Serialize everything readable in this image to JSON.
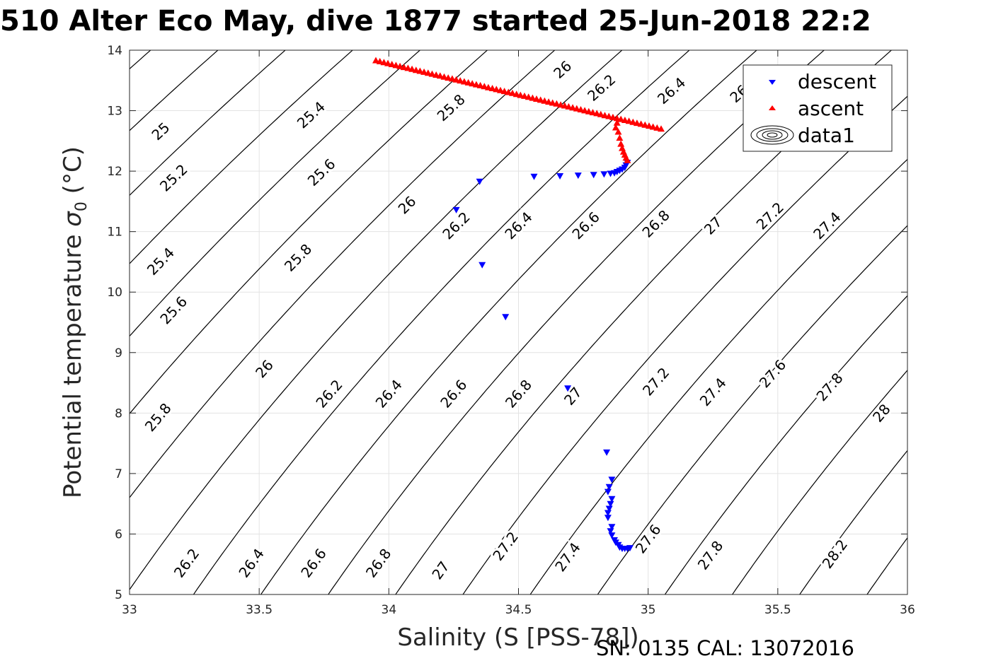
{
  "title": "510 Alter Eco May, dive 1877 started 25-Jun-2018 22:2",
  "footer_note": "SN: 0135  CAL: 13072016",
  "colors": {
    "descent": "#0000ff",
    "ascent": "#ff0000",
    "contour": "#000000",
    "grid": "#e3e3e3"
  },
  "chart_data": {
    "type": "scatter",
    "title": "510 Alter Eco May, dive 1877 started 25-Jun-2018 22:2",
    "xlabel": "Salinity (S [PSS-78])",
    "ylabel": {
      "main": "Potential temperature ",
      "sym": "σ",
      "sub": "0",
      "unit": " (°C)"
    },
    "xlim": [
      33,
      36
    ],
    "ylim": [
      5,
      14
    ],
    "x_ticks": [
      "33",
      "33.5",
      "34",
      "34.5",
      "35",
      "35.5",
      "36"
    ],
    "y_ticks": [
      "5",
      "6",
      "7",
      "8",
      "9",
      "10",
      "11",
      "12",
      "13",
      "14"
    ],
    "grid": true,
    "legend_position": "top-right",
    "legend": [
      {
        "label": "descent",
        "marker": "triangle-down",
        "color": "#0000ff"
      },
      {
        "label": "ascent",
        "marker": "triangle-up",
        "color": "#ff0000"
      },
      {
        "label": "data1",
        "marker": "contour",
        "color": "#000000"
      }
    ],
    "series": [
      {
        "name": "descent",
        "marker": "triangle-down",
        "color": "#0000ff",
        "points": [
          [
            34.35,
            11.83
          ],
          [
            34.26,
            11.36
          ],
          [
            34.36,
            10.45
          ],
          [
            34.45,
            9.59
          ],
          [
            34.56,
            11.91
          ],
          [
            34.66,
            11.92
          ],
          [
            34.73,
            11.93
          ],
          [
            34.79,
            11.94
          ],
          [
            34.83,
            11.95
          ],
          [
            34.855,
            11.96
          ],
          [
            34.87,
            11.97
          ],
          [
            34.88,
            11.99
          ],
          [
            34.89,
            12.01
          ],
          [
            34.9,
            12.03
          ],
          [
            34.91,
            12.06
          ],
          [
            34.915,
            12.1
          ],
          [
            34.92,
            12.14
          ],
          [
            34.69,
            8.41
          ],
          [
            34.84,
            7.35
          ],
          [
            34.86,
            6.9
          ],
          [
            34.85,
            6.78
          ],
          [
            34.845,
            6.7
          ],
          [
            34.86,
            6.58
          ],
          [
            34.855,
            6.5
          ],
          [
            34.85,
            6.42
          ],
          [
            34.845,
            6.35
          ],
          [
            34.845,
            6.27
          ],
          [
            34.86,
            6.12
          ],
          [
            34.855,
            6.05
          ],
          [
            34.86,
            5.98
          ],
          [
            34.87,
            5.9
          ],
          [
            34.875,
            5.86
          ],
          [
            34.885,
            5.82
          ],
          [
            34.89,
            5.78
          ],
          [
            34.9,
            5.76
          ],
          [
            34.91,
            5.76
          ],
          [
            34.92,
            5.76
          ],
          [
            34.93,
            5.77
          ]
        ]
      },
      {
        "name": "ascent",
        "marker": "triangle-up",
        "color": "#ff0000",
        "line": {
          "x0": 33.95,
          "y0": 13.83,
          "x1": 35.05,
          "y1": 12.7,
          "count": 72
        },
        "points": [
          [
            34.88,
            12.8
          ],
          [
            34.875,
            12.72
          ],
          [
            34.885,
            12.65
          ],
          [
            34.89,
            12.55
          ],
          [
            34.895,
            12.45
          ],
          [
            34.9,
            12.38
          ],
          [
            34.905,
            12.32
          ],
          [
            34.91,
            12.27
          ],
          [
            34.915,
            12.22
          ],
          [
            34.92,
            12.18
          ]
        ]
      }
    ],
    "contour_labels": [
      {
        "text": "25",
        "s": 33.12,
        "t": 12.66
      },
      {
        "text": "25.4",
        "s": 33.7,
        "t": 12.93
      },
      {
        "text": "25.8",
        "s": 34.24,
        "t": 13.05
      },
      {
        "text": "26",
        "s": 34.67,
        "t": 13.68
      },
      {
        "text": "26.2",
        "s": 34.82,
        "t": 13.38
      },
      {
        "text": "26.4",
        "s": 35.09,
        "t": 13.33
      },
      {
        "text": "26",
        "s": 35.35,
        "t": 13.28
      },
      {
        "text": "25.2",
        "s": 33.17,
        "t": 11.89
      },
      {
        "text": "25.6",
        "s": 33.74,
        "t": 11.98
      },
      {
        "text": "26",
        "s": 34.07,
        "t": 11.44
      },
      {
        "text": "26.2",
        "s": 34.26,
        "t": 11.1
      },
      {
        "text": "26.4",
        "s": 34.5,
        "t": 11.1
      },
      {
        "text": "26.6",
        "s": 34.76,
        "t": 11.1
      },
      {
        "text": "26.8",
        "s": 35.03,
        "t": 11.13
      },
      {
        "text": "27",
        "s": 35.25,
        "t": 11.1
      },
      {
        "text": "27.2",
        "s": 35.47,
        "t": 11.26
      },
      {
        "text": "27.4",
        "s": 35.69,
        "t": 11.1
      },
      {
        "text": "25.4",
        "s": 33.12,
        "t": 10.51
      },
      {
        "text": "25.8",
        "s": 33.65,
        "t": 10.57
      },
      {
        "text": "25.6",
        "s": 33.17,
        "t": 9.7
      },
      {
        "text": "26",
        "s": 33.52,
        "t": 8.73
      },
      {
        "text": "26.2",
        "s": 33.77,
        "t": 8.32
      },
      {
        "text": "26.4",
        "s": 34.0,
        "t": 8.32
      },
      {
        "text": "26.6",
        "s": 34.25,
        "t": 8.32
      },
      {
        "text": "26.8",
        "s": 34.5,
        "t": 8.32
      },
      {
        "text": "27",
        "s": 34.71,
        "t": 8.28
      },
      {
        "text": "27.2",
        "s": 35.03,
        "t": 8.52
      },
      {
        "text": "27.4",
        "s": 35.25,
        "t": 8.35
      },
      {
        "text": "27.6",
        "s": 35.48,
        "t": 8.65
      },
      {
        "text": "27.8",
        "s": 35.7,
        "t": 8.43
      },
      {
        "text": "28",
        "s": 35.9,
        "t": 8.0
      },
      {
        "text": "25.8",
        "s": 33.11,
        "t": 7.93
      },
      {
        "text": "26.2",
        "s": 33.22,
        "t": 5.52
      },
      {
        "text": "26.4",
        "s": 33.47,
        "t": 5.52
      },
      {
        "text": "26.6",
        "s": 33.71,
        "t": 5.52
      },
      {
        "text": "26.8",
        "s": 33.96,
        "t": 5.52
      },
      {
        "text": "27",
        "s": 34.2,
        "t": 5.4
      },
      {
        "text": "27.2",
        "s": 34.45,
        "t": 5.8
      },
      {
        "text": "27.4",
        "s": 34.69,
        "t": 5.62
      },
      {
        "text": "27.6",
        "s": 35.0,
        "t": 5.92
      },
      {
        "text": "27.8",
        "s": 35.24,
        "t": 5.65
      },
      {
        "text": "28.2",
        "s": 35.72,
        "t": 5.67
      }
    ]
  }
}
